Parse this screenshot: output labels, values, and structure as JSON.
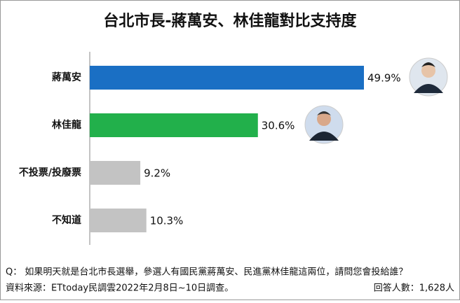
{
  "chart_data": {
    "type": "bar",
    "orientation": "horizontal",
    "title": "台北市長-蔣萬安、林佳龍對比支持度",
    "categories": [
      "蔣萬安",
      "林佳龍",
      "不投票/投廢票",
      "不知道"
    ],
    "values": [
      49.9,
      30.6,
      9.2,
      10.3
    ],
    "value_labels": [
      "49.9%",
      "30.6%",
      "9.2%",
      "10.3%"
    ],
    "colors": [
      "#1a6fc4",
      "#22b04b",
      "#c3c3c3",
      "#c3c3c3"
    ],
    "question": "Q： 如果明天就是台北市長選舉，參選人有國民黨蔣萬安、民進黨林佳龍這兩位，請問您會投給誰？",
    "source": "資料來源：ETtoday民調雲2022年2月8日~10日調查。",
    "sample": "回答人數：1,628人"
  }
}
